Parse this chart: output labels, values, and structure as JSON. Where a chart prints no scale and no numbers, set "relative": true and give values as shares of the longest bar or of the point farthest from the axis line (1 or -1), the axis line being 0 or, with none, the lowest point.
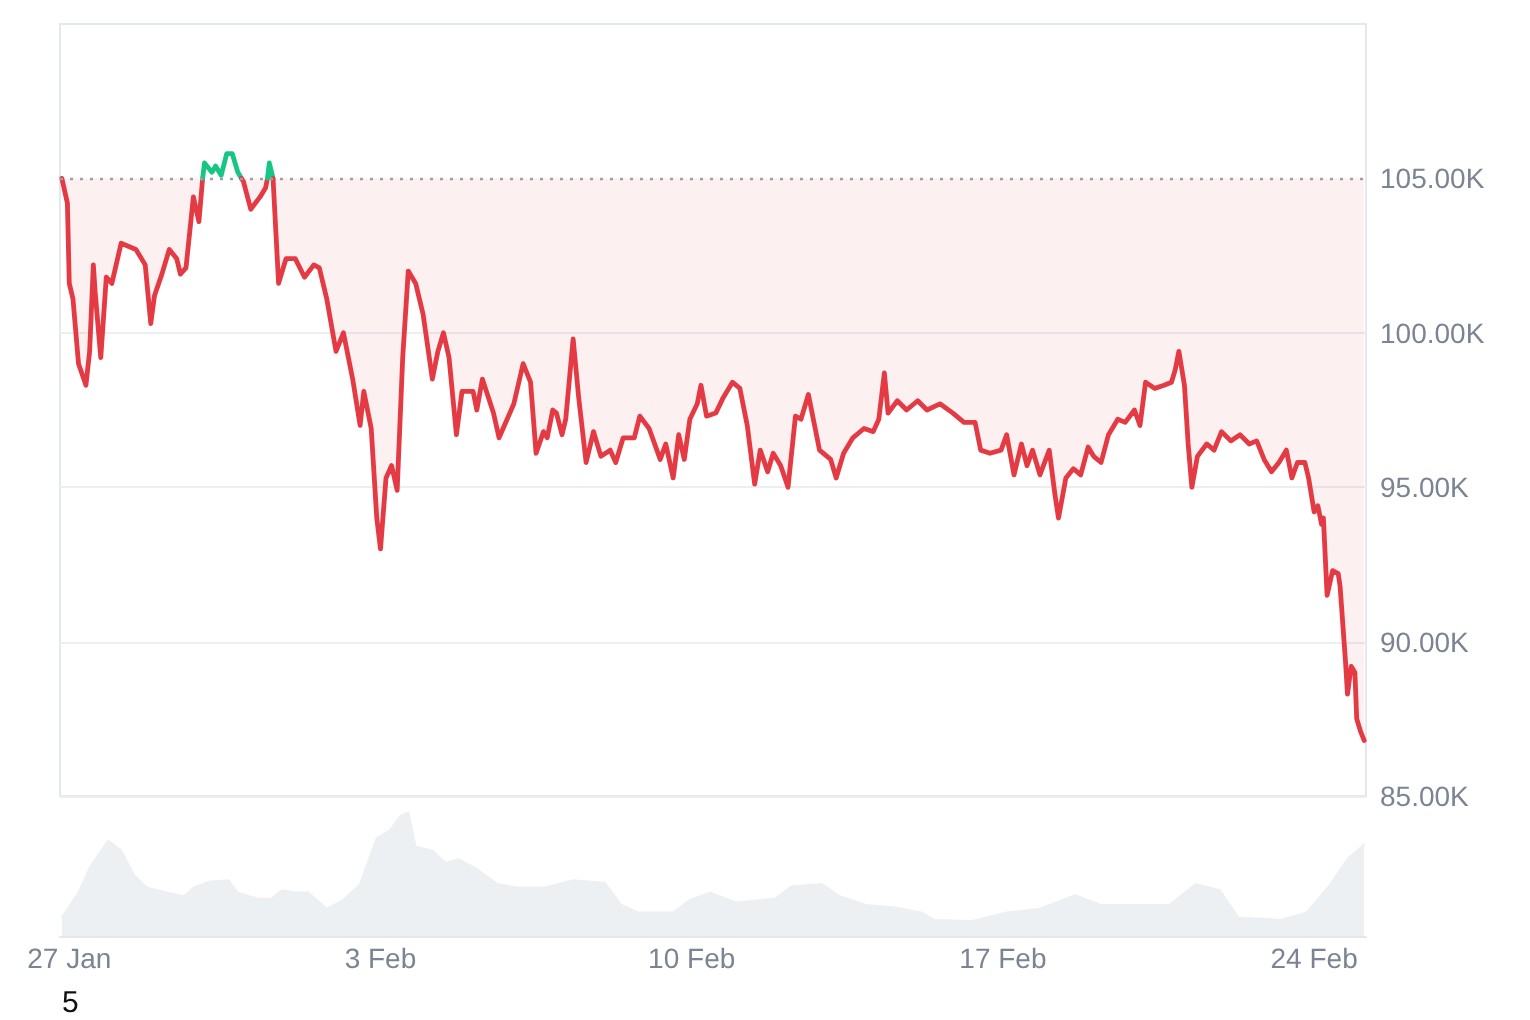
{
  "chart_data": [
    {
      "type": "line",
      "tick_labels": "y",
      "grid": "y",
      "xlim": [
        "--01-26T19:00",
        "--02-25T04:00"
      ],
      "ylim": [
        85000,
        110000
      ],
      "yticks": [
        {
          "value": 85000,
          "label": "85.00K"
        },
        {
          "value": 90000,
          "label": "90.00K"
        },
        {
          "value": 95000,
          "label": "95.00K"
        },
        {
          "value": 100000,
          "label": "100.00K"
        },
        {
          "value": 105000,
          "label": "105.00K"
        }
      ],
      "ref_lines": [
        {
          "axis": "y",
          "value": 105000,
          "color": "#9aa0a6",
          "line_style": "dotted"
        }
      ],
      "series": [
        {
          "color": "#e33a44",
          "x": [
            "--01-26T20:00",
            "--01-26T23:00",
            "--01-27T00:00",
            "--01-27T02:00",
            "--01-27T05:00",
            "--01-27T09:00",
            "--01-27T11:00",
            "--01-27T13:00",
            "--01-27T14:00",
            "--01-27T17:00",
            "--01-27T20:00",
            "--01-27T23:00",
            "--01-28T04:00",
            "--01-28T12:00",
            "--01-28T17:00",
            "--01-28T20:00",
            "--01-28T22:00",
            "--01-29T02:00",
            "--01-29T06:00",
            "--01-29T10:00",
            "--01-29T12:00",
            "--01-29T15:00",
            "--01-29T19:00",
            "--01-29T22:00",
            "--01-30T00:00"
          ],
          "values": [
            105000,
            104200,
            101600,
            101100,
            99000,
            98300,
            99400,
            102200,
            101300,
            99200,
            101800,
            101600,
            102900,
            102700,
            102200,
            100300,
            101200,
            101900,
            102700,
            102400,
            101900,
            102100,
            104400,
            103600,
            105000
          ],
          "lower": [
            105000,
            104200,
            101600,
            101100,
            99000,
            98300,
            99400,
            102200,
            101300,
            99200,
            101800,
            101600,
            102900,
            102700,
            102200,
            100300,
            101200,
            101900,
            102700,
            102400,
            101900,
            102100,
            104400,
            103600,
            105000
          ],
          "upper": [
            105000,
            105000,
            105000,
            105000,
            105000,
            105000,
            105000,
            105000,
            105000,
            105000,
            105000,
            105000,
            105000,
            105000,
            105000,
            105000,
            105000,
            105000,
            105000,
            105000,
            105000,
            105000,
            105000,
            105000,
            105000
          ]
        },
        {
          "color": "#16c784",
          "x": [
            "--01-30T00:00",
            "--01-30T01:00",
            "--01-30T05:00",
            "--01-30T07:00",
            "--01-30T10:00",
            "--01-30T13:00",
            "--01-30T16:00",
            "--01-30T19:00",
            "--01-30T21:00"
          ],
          "values": [
            105000,
            105500,
            105200,
            105400,
            105100,
            105800,
            105800,
            105200,
            105000
          ]
        },
        {
          "color": "#e33a44",
          "x": [
            "--01-30T21:00",
            "--01-30T22:00",
            "--01-31T02:00",
            "--01-31T07:00",
            "--01-31T10:00",
            "--01-31T11:00"
          ],
          "values": [
            105000,
            104900,
            104000,
            104400,
            104700,
            105000
          ],
          "lower": [
            105000,
            104900,
            104000,
            104400,
            104700,
            105000
          ],
          "upper": [
            105000,
            105000,
            105000,
            105000,
            105000,
            105000
          ]
        },
        {
          "color": "#16c784",
          "x": [
            "--01-31T11:00",
            "--01-31T12:00",
            "--01-31T14:00"
          ],
          "values": [
            105000,
            105500,
            105000
          ]
        },
        {
          "color": "#e33a44",
          "x": [
            "--01-31T14:00",
            "--01-31T17:00",
            "--01-31T21:00",
            "--02-01T02:00",
            "--02-01T07:00",
            "--02-01T12:00",
            "--02-01T15:00",
            "--02-01T19:00",
            "--02-02T00:00",
            "--02-02T04:00",
            "--02-02T09:00",
            "--02-02T13:00",
            "--02-02T15:00",
            "--02-02T19:00",
            "--02-02T22:00",
            "--02-03T00:00",
            "--02-03T03:00",
            "--02-03T06:00",
            "--02-03T09:00",
            "--02-03T12:00",
            "--02-03T15:00",
            "--02-03T19:00",
            "--02-03T23:00",
            "--02-04T04:00",
            "--02-04T07:00",
            "--02-04T10:00",
            "--02-04T13:00",
            "--02-04T17:00",
            "--02-04T20:00",
            "--02-05T02:00",
            "--02-05T04:00",
            "--02-05T07:00",
            "--02-05T13:00",
            "--02-05T16:00",
            "--02-06T00:00",
            "--02-06T05:00",
            "--02-06T09:00",
            "--02-06T12:00",
            "--02-06T16:00",
            "--02-06T18:00",
            "--02-06T21:00",
            "--02-06T23:00",
            "--02-07T02:00",
            "--02-07T04:00",
            "--02-07T08:00",
            "--02-07T11:00",
            "--02-07T15:00",
            "--02-07T19:00",
            "--02-07T23:00",
            "--02-08T04:00",
            "--02-08T07:00",
            "--02-08T11:00",
            "--02-08T17:00",
            "--02-08T20:00",
            "--02-09T01:00",
            "--02-09T07:00",
            "--02-09T10:00",
            "--02-09T14:00",
            "--02-09T17:00",
            "--02-09T20:00",
            "--02-09T23:00",
            "--02-10T03:00",
            "--02-10T05:00",
            "--02-10T08:00",
            "--02-10T13:00",
            "--02-10T17:00",
            "--02-10T22:00",
            "--02-11T02:00",
            "--02-11T06:00",
            "--02-11T10:00",
            "--02-11T13:00",
            "--02-11T17:00",
            "--02-11T20:00",
            "--02-12T00:00",
            "--02-12T04:00",
            "--02-12T08:00",
            "--02-12T11:00",
            "--02-12T15:00",
            "--02-12T18:00",
            "--02-12T21:00",
            "--02-13T03:00",
            "--02-13T06:00",
            "--02-13T10:00",
            "--02-13T15:00",
            "--02-13T21:00",
            "--02-14T02:00",
            "--02-14T05:00",
            "--02-14T08:00",
            "--02-14T10:00",
            "--02-14T15:00",
            "--02-14T20:00",
            "--02-15T02:00",
            "--02-15T07:00",
            "--02-15T14:00",
            "--02-15T21:00",
            "--02-16T03:00",
            "--02-16T09:00",
            "--02-16T12:00",
            "--02-16T17:00",
            "--02-16T23:00",
            "--02-17T02:00",
            "--02-17T06:00",
            "--02-17T10:00",
            "--02-17T13:00",
            "--02-17T16:00",
            "--02-17T20:00",
            "--02-18T01:00",
            "--02-18T04:00",
            "--02-18T06:00",
            "--02-18T10:00",
            "--02-18T14:00",
            "--02-18T18:00",
            "--02-18T22:00",
            "--02-19T01:00",
            "--02-19T05:00",
            "--02-19T09:00",
            "--02-19T14:00",
            "--02-19T18:00",
            "--02-19T23:00",
            "--02-20T02:00",
            "--02-20T05:00",
            "--02-20T10:00",
            "--02-20T15:00",
            "--02-20T19:00",
            "--02-20T21:00",
            "--02-20T23:00",
            "--02-21T02:00",
            "--02-21T04:00",
            "--02-21T06:00",
            "--02-21T09:00",
            "--02-21T14:00",
            "--02-21T18:00",
            "--02-21T22:00",
            "--02-22T03:00",
            "--02-22T08:00",
            "--02-22T13:00",
            "--02-22T17:00",
            "--02-22T21:00",
            "--02-23T01:00",
            "--02-23T05:00",
            "--02-23T09:00",
            "--02-23T12:00",
            "--02-23T15:00",
            "--02-23T19:00",
            "--02-23T21:00",
            "--02-24T00:00",
            "--02-24T02:00",
            "--02-24T04:00",
            "--02-24T05:00",
            "--02-24T07:00",
            "--02-24T10:00",
            "--02-24T13:00",
            "--02-24T14:00",
            "--02-24T17:00",
            "--02-24T18:00",
            "--02-24T20:00",
            "--02-24T22:00",
            "--02-24T23:00",
            "--02-25T00:00",
            "--02-25T01:00",
            "--02-25T03:00"
          ],
          "values": [
            105000,
            101600,
            102400,
            102400,
            101800,
            102200,
            102100,
            101100,
            99400,
            100000,
            98500,
            97000,
            98100,
            96900,
            94000,
            93000,
            95300,
            95700,
            94900,
            99200,
            102000,
            101600,
            100600,
            98500,
            99400,
            100000,
            99200,
            96700,
            98100,
            98100,
            97500,
            98500,
            97400,
            96600,
            97700,
            99000,
            98400,
            96100,
            96800,
            96600,
            97500,
            97400,
            96700,
            97200,
            99800,
            97900,
            95800,
            96800,
            96000,
            96200,
            95800,
            96600,
            96600,
            97300,
            96900,
            95900,
            96400,
            95300,
            96700,
            95900,
            97200,
            97700,
            98300,
            97300,
            97400,
            97900,
            98400,
            98200,
            97000,
            95100,
            96200,
            95500,
            96100,
            95700,
            95000,
            97300,
            97200,
            98000,
            97100,
            96200,
            95900,
            95300,
            96100,
            96600,
            96900,
            96800,
            97200,
            98700,
            97400,
            97800,
            97500,
            97800,
            97500,
            97700,
            97400,
            97100,
            97100,
            96200,
            96100,
            96200,
            96700,
            95400,
            96400,
            95700,
            96200,
            95400,
            96200,
            94800,
            94000,
            95300,
            95600,
            95400,
            96300,
            96000,
            95800,
            96700,
            97200,
            97100,
            97500,
            97000,
            98400,
            98200,
            98300,
            98400,
            98800,
            99400,
            98300,
            96400,
            95000,
            96000,
            96400,
            96200,
            96800,
            96500,
            96700,
            96400,
            96500,
            95900,
            95500,
            95800,
            96200,
            95300,
            95800,
            95800,
            95300,
            94200,
            94400,
            93800,
            94000,
            91500,
            92300,
            92200,
            91800,
            89300,
            88300,
            89200,
            89000,
            87500,
            87300,
            87100,
            86800
          ],
          "lower": [
            105000,
            101600,
            102400,
            102400,
            101800,
            102200,
            102100,
            101100,
            99400,
            100000,
            98500,
            97000,
            98100,
            96900,
            94000,
            93000,
            95300,
            95700,
            94900,
            99200,
            102000,
            101600,
            100600,
            98500,
            99400,
            100000,
            99200,
            96700,
            98100,
            98100,
            97500,
            98500,
            97400,
            96600,
            97700,
            99000,
            98400,
            96100,
            96800,
            96600,
            97500,
            97400,
            96700,
            97200,
            99800,
            97900,
            95800,
            96800,
            96000,
            96200,
            95800,
            96600,
            96600,
            97300,
            96900,
            95900,
            96400,
            95300,
            96700,
            95900,
            97200,
            97700,
            98300,
            97300,
            97400,
            97900,
            98400,
            98200,
            97000,
            95100,
            96200,
            95500,
            96100,
            95700,
            95000,
            97300,
            97200,
            98000,
            97100,
            96200,
            95900,
            95300,
            96100,
            96600,
            96900,
            96800,
            97200,
            98700,
            97400,
            97800,
            97500,
            97800,
            97500,
            97700,
            97400,
            97100,
            97100,
            96200,
            96100,
            96200,
            96700,
            95400,
            96400,
            95700,
            96200,
            95400,
            96200,
            94800,
            94000,
            95300,
            95600,
            95400,
            96300,
            96000,
            95800,
            96700,
            97200,
            97100,
            97500,
            97000,
            98400,
            98200,
            98300,
            98400,
            98800,
            99400,
            98300,
            96400,
            95000,
            96000,
            96400,
            96200,
            96800,
            96500,
            96700,
            96400,
            96500,
            95900,
            95500,
            95800,
            96200,
            95300,
            95800,
            95800,
            95300,
            94200,
            94400,
            93800,
            94000,
            91500,
            92300,
            92200,
            91800,
            89300,
            88300,
            89200,
            89000,
            87500,
            87300,
            87100,
            86800
          ],
          "upper": [
            105000,
            105000,
            105000,
            105000,
            105000,
            105000,
            105000,
            105000,
            105000,
            105000,
            105000,
            105000,
            105000,
            105000,
            105000,
            105000,
            105000,
            105000,
            105000,
            105000,
            105000,
            105000,
            105000,
            105000,
            105000,
            105000,
            105000,
            105000,
            105000,
            105000,
            105000,
            105000,
            105000,
            105000,
            105000,
            105000,
            105000,
            105000,
            105000,
            105000,
            105000,
            105000,
            105000,
            105000,
            105000,
            105000,
            105000,
            105000,
            105000,
            105000,
            105000,
            105000,
            105000,
            105000,
            105000,
            105000,
            105000,
            105000,
            105000,
            105000,
            105000,
            105000,
            105000,
            105000,
            105000,
            105000,
            105000,
            105000,
            105000,
            105000,
            105000,
            105000,
            105000,
            105000,
            105000,
            105000,
            105000,
            105000,
            105000,
            105000,
            105000,
            105000,
            105000,
            105000,
            105000,
            105000,
            105000,
            105000,
            105000,
            105000,
            105000,
            105000,
            105000,
            105000,
            105000,
            105000,
            105000,
            105000,
            105000,
            105000,
            105000,
            105000,
            105000,
            105000,
            105000,
            105000,
            105000,
            105000,
            105000,
            105000,
            105000,
            105000,
            105000,
            105000,
            105000,
            105000,
            105000,
            105000,
            105000,
            105000,
            105000,
            105000,
            105000,
            105000,
            105000,
            105000,
            105000,
            105000,
            105000,
            105000,
            105000,
            105000,
            105000,
            105000,
            105000,
            105000,
            105000,
            105000,
            105000,
            105000,
            105000,
            105000,
            105000,
            105000,
            105000,
            105000,
            105000,
            105000,
            105000,
            105000,
            105000,
            105000,
            105000,
            105000,
            105000,
            105000,
            105000,
            105000,
            105000,
            105000,
            105000
          ]
        }
      ]
    },
    {
      "type": "area",
      "relative": true,
      "tick_labels": "x",
      "color": "#edf0f3",
      "xlim": [
        "--01-26T19:00",
        "--02-25T04:00"
      ],
      "xticks": [
        {
          "value": "--01-27",
          "label": "27 Jan"
        },
        {
          "value": "--02-03",
          "label": "3 Feb"
        },
        {
          "value": "--02-10",
          "label": "10 Feb"
        },
        {
          "value": "--02-17",
          "label": "17 Feb"
        },
        {
          "value": "--02-24",
          "label": "24 Feb"
        }
      ],
      "x": [
        "--01-26T20:00",
        "--01-27T05:00",
        "--01-27T11:00",
        "--01-27T21:00",
        "--01-28T04:00",
        "--01-28T11:00",
        "--01-28T18:00",
        "--01-29T05:00",
        "--01-29T14:00",
        "--01-29T19:00",
        "--01-30T04:00",
        "--01-30T14:00",
        "--01-30T19:00",
        "--01-31T06:00",
        "--01-31T13:00",
        "--01-31T19:00",
        "--02-01T02:00",
        "--02-01T09:00",
        "--02-01T19:00",
        "--02-02T04:00",
        "--02-02T13:00",
        "--02-02T22:00",
        "--02-03T05:00",
        "--02-03T11:00",
        "--02-03T15:00",
        "--02-03T19:00",
        "--02-04T04:00",
        "--02-04T11:00",
        "--02-04T18:00",
        "--02-05T03:00",
        "--02-05T15:00",
        "--02-06T02:00",
        "--02-06T16:00",
        "--02-07T08:00",
        "--02-08T01:00",
        "--02-08T10:00",
        "--02-08T19:00",
        "--02-09T14:00",
        "--02-09T23:00",
        "--02-10T10:00",
        "--02-11T00:00",
        "--02-11T21:00",
        "--02-12T06:00",
        "--02-12T22:00",
        "--02-13T08:00",
        "--02-13T22:00",
        "--02-14T14:00",
        "--02-15T04:00",
        "--02-15T11:00",
        "--02-16T07:00",
        "--02-17T02:00",
        "--02-17T20:00",
        "--02-18T15:00",
        "--02-19T05:00",
        "--02-20T04:00",
        "--02-20T18:00",
        "--02-21T08:00",
        "--02-21T21:00",
        "--02-22T07:00",
        "--02-23T06:00",
        "--02-23T20:00",
        "--02-24T09:00",
        "--02-24T18:00",
        "--02-25T03:00"
      ],
      "values": [
        0.15,
        0.35,
        0.55,
        0.77,
        0.69,
        0.49,
        0.39,
        0.35,
        0.32,
        0.39,
        0.44,
        0.45,
        0.35,
        0.3,
        0.3,
        0.37,
        0.35,
        0.35,
        0.22,
        0.29,
        0.42,
        0.79,
        0.85,
        0.97,
        1,
        0.72,
        0.69,
        0.59,
        0.62,
        0.55,
        0.42,
        0.39,
        0.39,
        0.45,
        0.43,
        0.25,
        0.19,
        0.19,
        0.29,
        0.35,
        0.27,
        0.3,
        0.4,
        0.42,
        0.32,
        0.25,
        0.23,
        0.19,
        0.13,
        0.12,
        0.19,
        0.22,
        0.33,
        0.25,
        0.25,
        0.25,
        0.42,
        0.37,
        0.15,
        0.13,
        0.19,
        0.42,
        0.62,
        0.74
      ],
      "annotations": [
        "5"
      ]
    }
  ]
}
